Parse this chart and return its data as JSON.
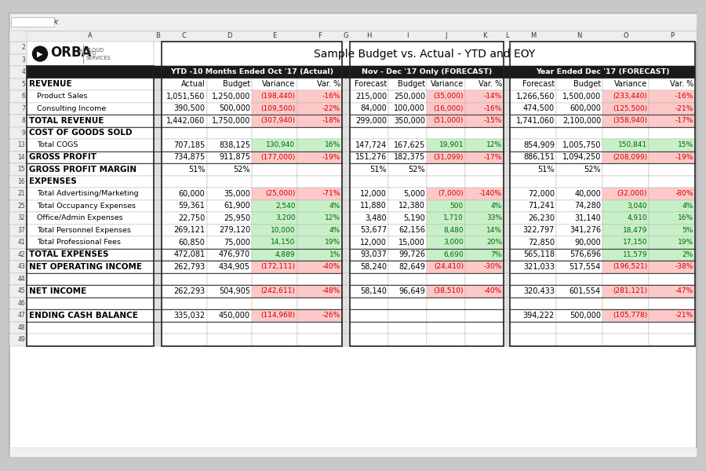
{
  "title": "Sample Budget vs. Actual - YTD and EOY",
  "section_headers": {
    "ytd": "YTD -10 Months Ended Oct '17 (Actual)",
    "nov_dec": "Nov - Dec '17 Only (FORECAST)",
    "year": "Year Ended Dec '17 (FORECAST)"
  },
  "col_headers_ytd": [
    "Actual",
    "Budget",
    "Variance",
    "Var. %"
  ],
  "col_headers_nd": [
    "Forecast",
    "Budget",
    "Variance",
    "Var. %"
  ],
  "col_headers_yr": [
    "Forecast",
    "Budget",
    "Variance",
    "Var. %"
  ],
  "rows": [
    {
      "row": 5,
      "label": "REVENUE",
      "bold": true,
      "indent": 0,
      "ytd": [
        "",
        "",
        "",
        ""
      ],
      "nd": [
        "",
        "",
        "",
        ""
      ],
      "yr": [
        "",
        "",
        "",
        ""
      ]
    },
    {
      "row": 6,
      "label": "Product Sales",
      "bold": false,
      "indent": 1,
      "ytd": [
        "1,051,560",
        "1,250,000",
        "(198,440)",
        "-16%"
      ],
      "nd": [
        "215,000",
        "250,000",
        "(35,000)",
        "-14%"
      ],
      "yr": [
        "1,266,560",
        "1,500,000",
        "(233,440)",
        "-16%"
      ]
    },
    {
      "row": 7,
      "label": "Consulting Income",
      "bold": false,
      "indent": 1,
      "ytd": [
        "390,500",
        "500,000",
        "(109,500)",
        "-22%"
      ],
      "nd": [
        "84,000",
        "100,000",
        "(16,000)",
        "-16%"
      ],
      "yr": [
        "474,500",
        "600,000",
        "(125,500)",
        "-21%"
      ]
    },
    {
      "row": 8,
      "label": "TOTAL REVENUE",
      "bold": true,
      "indent": 0,
      "ytd": [
        "1,442,060",
        "1,750,000",
        "(307,940)",
        "-18%"
      ],
      "nd": [
        "299,000",
        "350,000",
        "(51,000)",
        "-15%"
      ],
      "yr": [
        "1,741,060",
        "2,100,000",
        "(358,940)",
        "-17%"
      ]
    },
    {
      "row": 9,
      "label": "COST OF GOODS SOLD",
      "bold": true,
      "indent": 0,
      "ytd": [
        "",
        "",
        "",
        ""
      ],
      "nd": [
        "",
        "",
        "",
        ""
      ],
      "yr": [
        "",
        "",
        "",
        ""
      ]
    },
    {
      "row": 13,
      "label": "Total COGS",
      "bold": false,
      "indent": 1,
      "ytd": [
        "707,185",
        "838,125",
        "130,940",
        "16%"
      ],
      "nd": [
        "147,724",
        "167,625",
        "19,901",
        "12%"
      ],
      "yr": [
        "854,909",
        "1,005,750",
        "150,841",
        "15%"
      ]
    },
    {
      "row": 14,
      "label": "GROSS PROFIT",
      "bold": true,
      "indent": 0,
      "ytd": [
        "734,875",
        "911,875",
        "(177,000)",
        "-19%"
      ],
      "nd": [
        "151,276",
        "182,375",
        "(31,099)",
        "-17%"
      ],
      "yr": [
        "886,151",
        "1,094,250",
        "(208,099)",
        "-19%"
      ]
    },
    {
      "row": 15,
      "label": "GROSS PROFIT MARGIN",
      "bold": true,
      "indent": 0,
      "ytd": [
        "51%",
        "52%",
        "",
        ""
      ],
      "nd": [
        "51%",
        "52%",
        "",
        ""
      ],
      "yr": [
        "51%",
        "52%",
        "",
        ""
      ]
    },
    {
      "row": 16,
      "label": "EXPENSES",
      "bold": true,
      "indent": 0,
      "ytd": [
        "",
        "",
        "",
        ""
      ],
      "nd": [
        "",
        "",
        "",
        ""
      ],
      "yr": [
        "",
        "",
        "",
        ""
      ]
    },
    {
      "row": 21,
      "label": "Total Advertising/Marketing",
      "bold": false,
      "indent": 1,
      "ytd": [
        "60,000",
        "35,000",
        "(25,000)",
        "-71%"
      ],
      "nd": [
        "12,000",
        "5,000",
        "(7,000)",
        "-140%"
      ],
      "yr": [
        "72,000",
        "40,000",
        "(32,000)",
        "-80%"
      ]
    },
    {
      "row": 25,
      "label": "Total Occupancy Expenses",
      "bold": false,
      "indent": 1,
      "ytd": [
        "59,361",
        "61,900",
        "2,540",
        "4%"
      ],
      "nd": [
        "11,880",
        "12,380",
        "500",
        "4%"
      ],
      "yr": [
        "71,241",
        "74,280",
        "3,040",
        "4%"
      ]
    },
    {
      "row": 32,
      "label": "Office/Admin Expenses",
      "bold": false,
      "indent": 1,
      "ytd": [
        "22,750",
        "25,950",
        "3,200",
        "12%"
      ],
      "nd": [
        "3,480",
        "5,190",
        "1,710",
        "33%"
      ],
      "yr": [
        "26,230",
        "31,140",
        "4,910",
        "16%"
      ]
    },
    {
      "row": 37,
      "label": "Total Personnel Expenses",
      "bold": false,
      "indent": 1,
      "ytd": [
        "269,121",
        "279,120",
        "10,000",
        "4%"
      ],
      "nd": [
        "53,677",
        "62,156",
        "8,480",
        "14%"
      ],
      "yr": [
        "322,797",
        "341,276",
        "18,479",
        "5%"
      ]
    },
    {
      "row": 41,
      "label": "Total Professional Fees",
      "bold": false,
      "indent": 1,
      "ytd": [
        "60,850",
        "75,000",
        "14,150",
        "19%"
      ],
      "nd": [
        "12,000",
        "15,000",
        "3,000",
        "20%"
      ],
      "yr": [
        "72,850",
        "90,000",
        "17,150",
        "19%"
      ]
    },
    {
      "row": 42,
      "label": "TOTAL EXPENSES",
      "bold": true,
      "indent": 0,
      "ytd": [
        "472,081",
        "476,970",
        "4,889",
        "1%"
      ],
      "nd": [
        "93,037",
        "99,726",
        "6,690",
        "7%"
      ],
      "yr": [
        "565,118",
        "576,696",
        "11,579",
        "2%"
      ]
    },
    {
      "row": 43,
      "label": "NET OPERATING INCOME",
      "bold": true,
      "indent": 0,
      "ytd": [
        "262,793",
        "434,905",
        "(172,111)",
        "-40%"
      ],
      "nd": [
        "58,240",
        "82,649",
        "(24,410)",
        "-30%"
      ],
      "yr": [
        "321,033",
        "517,554",
        "(196,521)",
        "-38%"
      ]
    },
    {
      "row": 44,
      "label": "",
      "bold": false,
      "indent": 0,
      "ytd": [
        "",
        "",
        "",
        ""
      ],
      "nd": [
        "",
        "",
        "",
        ""
      ],
      "yr": [
        "",
        "",
        "",
        ""
      ]
    },
    {
      "row": 45,
      "label": "NET INCOME",
      "bold": true,
      "indent": 0,
      "ytd": [
        "262,293",
        "504,905",
        "(242,611)",
        "-48%"
      ],
      "nd": [
        "58,140",
        "96,649",
        "(38,510)",
        "-40%"
      ],
      "yr": [
        "320,433",
        "601,554",
        "(281,121)",
        "-47%"
      ]
    },
    {
      "row": 46,
      "label": "",
      "bold": false,
      "indent": 0,
      "ytd": [
        "",
        "",
        "",
        ""
      ],
      "nd": [
        "",
        "",
        "",
        ""
      ],
      "yr": [
        "",
        "",
        "",
        ""
      ]
    },
    {
      "row": 47,
      "label": "ENDING CASH BALANCE",
      "bold": true,
      "indent": 0,
      "ytd": [
        "335,032",
        "450,000",
        "(114,968)",
        "-26%"
      ],
      "nd": [
        "",
        "",
        "",
        ""
      ],
      "yr": [
        "394,222",
        "500,000",
        "(105,778)",
        "-21%"
      ]
    },
    {
      "row": 48,
      "label": "",
      "bold": false,
      "indent": 0,
      "ytd": [
        "",
        "",
        "",
        ""
      ],
      "nd": [
        "",
        "",
        "",
        ""
      ],
      "yr": [
        "",
        "",
        "",
        ""
      ]
    },
    {
      "row": 49,
      "label": "",
      "bold": false,
      "indent": 0,
      "ytd": [
        "",
        "",
        "",
        ""
      ],
      "nd": [
        "",
        "",
        "",
        ""
      ],
      "yr": [
        "",
        "",
        "",
        ""
      ]
    }
  ],
  "neg_text": "#cc0000",
  "pos_text": "#006600",
  "neg_bg": "#ffc8c8",
  "pos_bg": "#c8f0c8",
  "header_bg": "#1a1a1a",
  "toolbar_bg": "#f0f0f0",
  "sheet_bg": "#ffffff",
  "outer_bg": "#c8c8c8",
  "row_num_bg": "#eeeeee",
  "col_hdr_bg": "#eeeeee",
  "sep_bg": "#e0e0e0",
  "grid_color": "#b0b0b0",
  "border_color": "#888888"
}
